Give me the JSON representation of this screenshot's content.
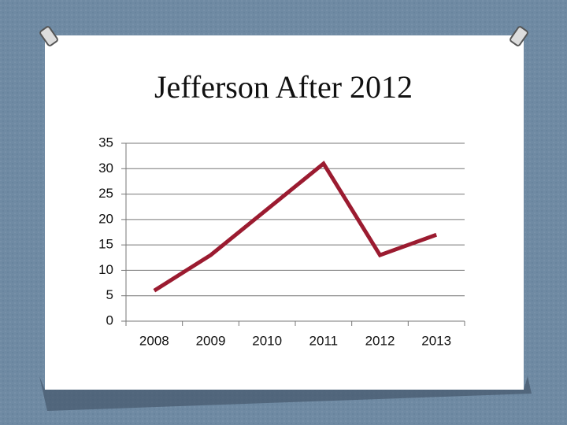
{
  "chart_data": {
    "type": "line",
    "title": "Jefferson After 2012",
    "categories": [
      "2008",
      "2009",
      "2010",
      "2011",
      "2012",
      "2013"
    ],
    "values": [
      6,
      13,
      22,
      31,
      13,
      17
    ],
    "color": "#9b1b30",
    "ylim": [
      0,
      35
    ],
    "yticks": [
      0,
      5,
      10,
      15,
      20,
      25,
      30,
      35
    ],
    "grid": true
  }
}
